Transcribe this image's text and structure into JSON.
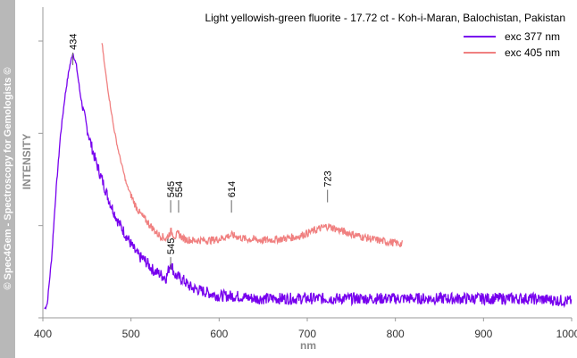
{
  "watermark": "© Spec4Gem - Spectroscopy for Gemologists ©",
  "chart_data": {
    "type": "line",
    "title": "Light yellowish-green fluorite - 17.72 ct - Koh-i-Maran, Balochistan, Pakistan",
    "xlabel": "nm",
    "ylabel": "INTENSITY",
    "xlim": [
      400,
      1000
    ],
    "ylim": [
      0,
      1
    ],
    "x_ticks": [
      "400",
      "500",
      "600",
      "700",
      "800",
      "900",
      "1000"
    ],
    "grid": false,
    "legend_position": "top-right",
    "series": [
      {
        "name": "exc 377 nm",
        "color": "#7700ee",
        "x": [
          402,
          405,
          410,
          415,
          420,
          425,
          430,
          434,
          438,
          442,
          446,
          450,
          455,
          460,
          465,
          470,
          475,
          480,
          485,
          490,
          495,
          500,
          505,
          510,
          515,
          520,
          525,
          530,
          535,
          540,
          545,
          550,
          555,
          560,
          565,
          570,
          580,
          590,
          600,
          620,
          640,
          660,
          680,
          700,
          720,
          740,
          760,
          780,
          800,
          850,
          900,
          950,
          1000
        ],
        "y": [
          0.0,
          0.02,
          0.2,
          0.46,
          0.67,
          0.82,
          0.93,
          0.99,
          0.94,
          0.84,
          0.76,
          0.7,
          0.63,
          0.57,
          0.52,
          0.47,
          0.42,
          0.38,
          0.34,
          0.31,
          0.28,
          0.25,
          0.22,
          0.2,
          0.19,
          0.17,
          0.15,
          0.14,
          0.13,
          0.12,
          0.18,
          0.13,
          0.12,
          0.11,
          0.09,
          0.08,
          0.07,
          0.06,
          0.05,
          0.05,
          0.04,
          0.04,
          0.04,
          0.04,
          0.04,
          0.04,
          0.04,
          0.04,
          0.04,
          0.04,
          0.04,
          0.04,
          0.03
        ]
      },
      {
        "name": "exc 405 nm",
        "color": "#f08080",
        "x": [
          467,
          470,
          475,
          480,
          485,
          490,
          495,
          500,
          505,
          510,
          515,
          520,
          525,
          530,
          535,
          540,
          545,
          550,
          554,
          560,
          570,
          580,
          590,
          600,
          614,
          630,
          650,
          670,
          690,
          710,
          723,
          740,
          760,
          780,
          800,
          808
        ],
        "y": [
          1.03,
          0.94,
          0.82,
          0.71,
          0.62,
          0.55,
          0.48,
          0.44,
          0.4,
          0.37,
          0.35,
          0.33,
          0.31,
          0.29,
          0.28,
          0.27,
          0.3,
          0.28,
          0.29,
          0.27,
          0.265,
          0.265,
          0.265,
          0.27,
          0.285,
          0.27,
          0.265,
          0.27,
          0.28,
          0.305,
          0.32,
          0.3,
          0.28,
          0.265,
          0.255,
          0.25
        ]
      }
    ],
    "annotations": [
      {
        "text": "434",
        "x": 434,
        "y": 0.99,
        "series": 0
      },
      {
        "text": "545",
        "x": 545,
        "y": 0.2,
        "series": 0
      },
      {
        "text": "545",
        "x": 545,
        "y": 0.42,
        "series": 1
      },
      {
        "text": "554",
        "x": 554,
        "y": 0.42,
        "series": 1
      },
      {
        "text": "614",
        "x": 614,
        "y": 0.42,
        "series": 1
      },
      {
        "text": "723",
        "x": 723,
        "y": 0.46,
        "series": 1
      }
    ]
  }
}
